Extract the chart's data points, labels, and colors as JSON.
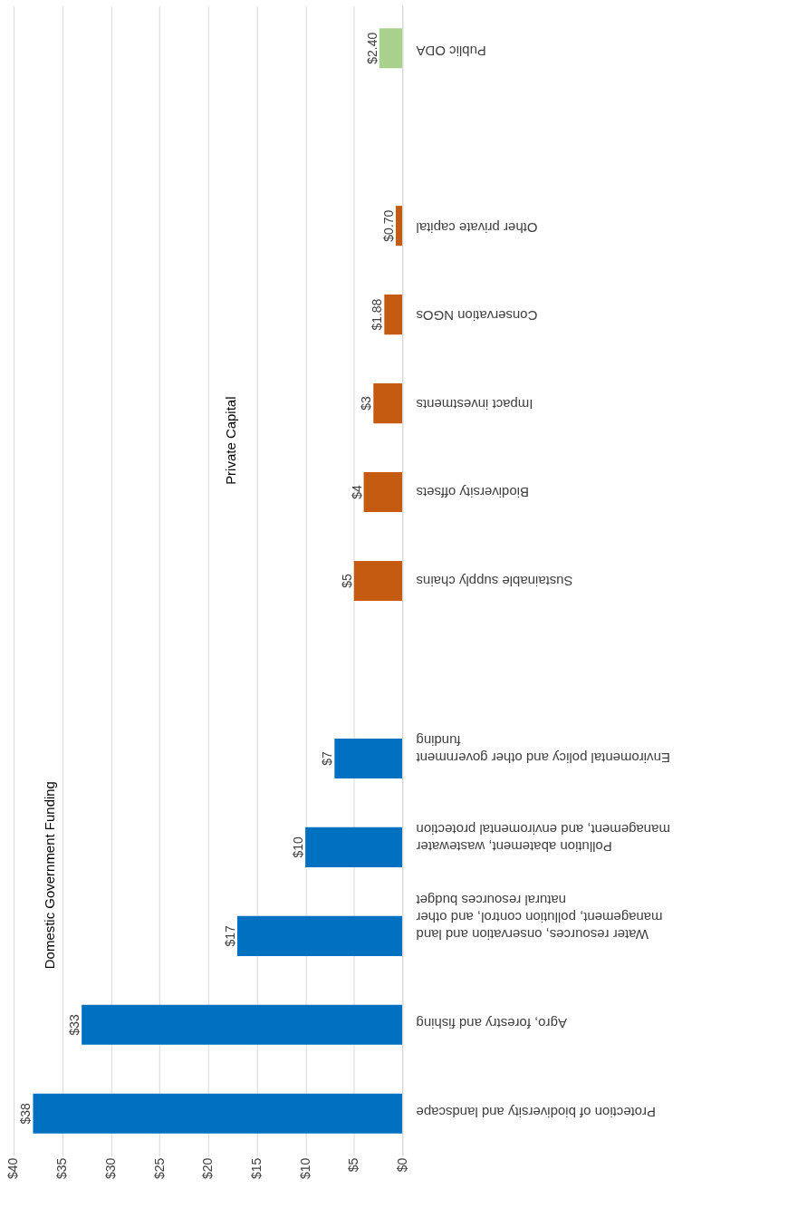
{
  "chart_data": {
    "type": "bar",
    "orientation": "horizontal",
    "categories": [
      "Public ODA",
      null,
      "Other private capital",
      "Conservation NGOs",
      "Impact investments",
      "Biodiversity offsets",
      "Sustainable supply chains",
      null,
      "Enviromental policy and other government funding",
      "Pollution abatement, wastewater management, and enviromental protection",
      "Water resources, onservation and land management, pollution control, and other natural resources budget",
      "Agro, forestry and fishing",
      "Protection of biodiversity and landscape"
    ],
    "values": [
      2.4,
      null,
      0.7,
      1.88,
      3,
      4,
      5,
      null,
      7,
      10,
      17,
      33,
      38
    ],
    "value_labels": [
      "$2.40",
      null,
      "$0.70",
      "$1.88",
      "$3",
      "$4",
      "$5",
      null,
      "$7",
      "$10",
      "$17",
      "$33",
      "$38"
    ],
    "colors": [
      "#a9d18e",
      null,
      "#c55a11",
      "#c55a11",
      "#c55a11",
      "#c55a11",
      "#c55a11",
      null,
      "#0070c0",
      "#0070c0",
      "#0070c0",
      "#0070c0",
      "#0070c0"
    ],
    "xlim": [
      40,
      0
    ],
    "xticks": [
      {
        "value": 40,
        "label": "$40"
      },
      {
        "value": 35,
        "label": "$35"
      },
      {
        "value": 30,
        "label": "$30"
      },
      {
        "value": 25,
        "label": "$25"
      },
      {
        "value": 20,
        "label": "$20"
      },
      {
        "value": 15,
        "label": "$15"
      },
      {
        "value": 10,
        "label": "$10"
      },
      {
        "value": 5,
        "label": "$5"
      },
      {
        "value": 0,
        "label": "$0"
      }
    ],
    "annotations": [
      "Domestic Government Funding",
      "Private Capital"
    ],
    "grid": "x"
  }
}
